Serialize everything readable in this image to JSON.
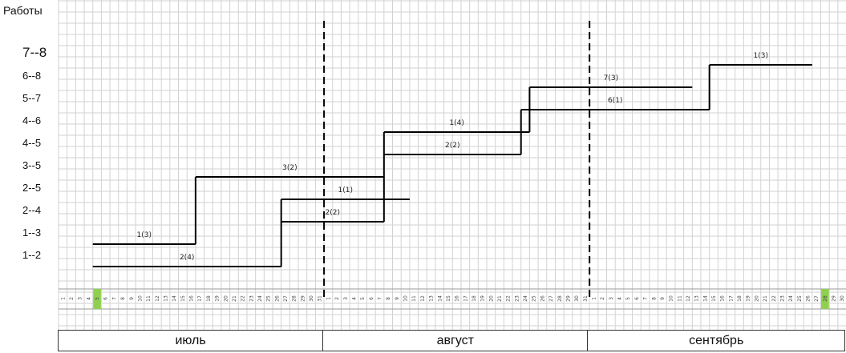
{
  "title": "Работы",
  "months": [
    {
      "name": "июль",
      "days": 31
    },
    {
      "name": "август",
      "days": 31
    },
    {
      "name": "сентябрь",
      "days": 30
    }
  ],
  "highlight_days": [
    {
      "month": 0,
      "day": 5
    },
    {
      "month": 2,
      "day": 28
    }
  ],
  "highlight_color": "#8fd14f",
  "rows": [
    "1--2",
    "1--3",
    "2--4",
    "2--5",
    "3--5",
    "4--5",
    "4--6",
    "5--7",
    "6--8",
    "7--8"
  ],
  "tasks": [
    {
      "label": "2(4)",
      "row": 0,
      "start": [
        0,
        5
      ],
      "end": [
        0,
        27
      ]
    },
    {
      "label": "1(3)",
      "row": 1,
      "start": [
        0,
        5
      ],
      "end": [
        0,
        17
      ]
    },
    {
      "label": "2(2)",
      "row": 2,
      "start": [
        0,
        27
      ],
      "end": [
        1,
        8
      ]
    },
    {
      "label": "1(1)",
      "row": 3,
      "start": [
        0,
        27
      ],
      "end": [
        1,
        11
      ]
    },
    {
      "label": "3(2)",
      "row": 4,
      "start": [
        0,
        17
      ],
      "end": [
        1,
        8
      ]
    },
    {
      "label": "2(2)",
      "row": 5,
      "start": [
        1,
        8
      ],
      "end": [
        1,
        24
      ]
    },
    {
      "label": "1(4)",
      "row": 6,
      "start": [
        1,
        8
      ],
      "end": [
        1,
        25
      ]
    },
    {
      "label": "6(1)",
      "row": 7,
      "start": [
        1,
        24
      ],
      "end": [
        2,
        15
      ]
    },
    {
      "label": "7(3)",
      "row": 8,
      "start": [
        1,
        25
      ],
      "end": [
        2,
        13
      ]
    },
    {
      "label": "1(3)",
      "row": 9,
      "start": [
        2,
        15
      ],
      "end": [
        2,
        27
      ]
    }
  ],
  "connectors": [
    {
      "at": [
        0,
        17
      ],
      "from_row": 1,
      "to_row": 4
    },
    {
      "at": [
        0,
        27
      ],
      "from_row": 0,
      "to_row": 3
    },
    {
      "at": [
        1,
        8
      ],
      "from_row": 2,
      "to_row": 6
    },
    {
      "at": [
        1,
        24
      ],
      "from_row": 5,
      "to_row": 7
    },
    {
      "at": [
        1,
        25
      ],
      "from_row": 6,
      "to_row": 8
    },
    {
      "at": [
        2,
        15
      ],
      "from_row": 7,
      "to_row": 9
    }
  ],
  "month_dividers": true
}
